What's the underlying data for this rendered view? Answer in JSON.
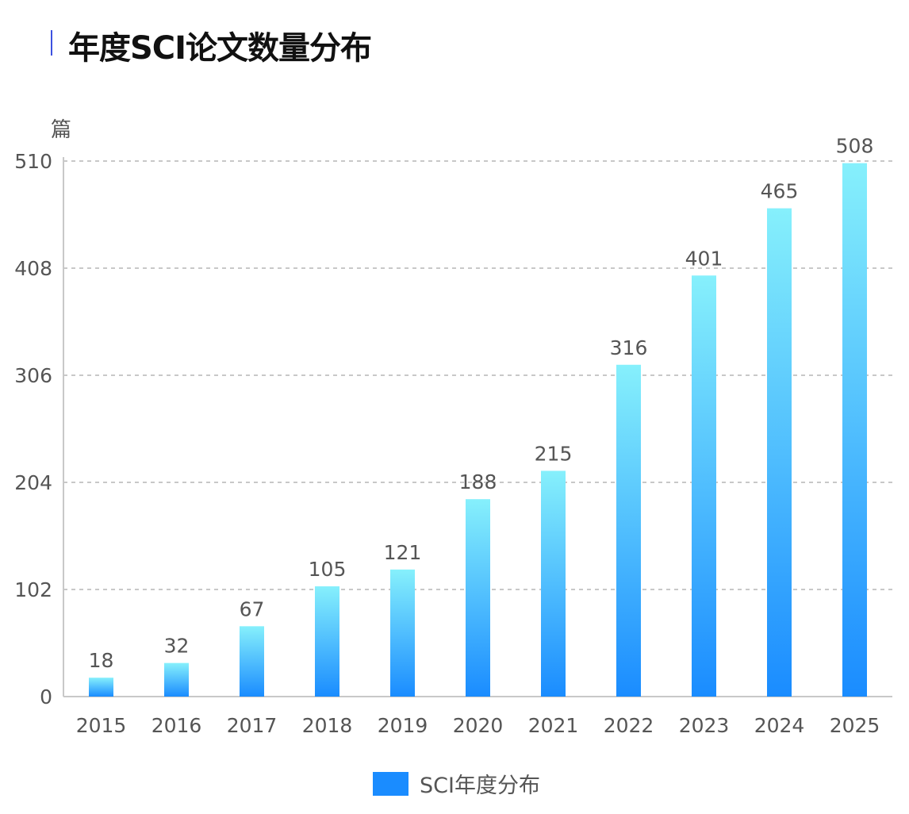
{
  "header": {
    "title": "年度SCI论文数量分布"
  },
  "colors": {
    "accent_bar": "#3d52e0",
    "bar_top": "#86f0fc",
    "bar_bottom": "#1a8cff",
    "grid": "#c8c8c8",
    "axis": "#c8c8c8",
    "text": "#555555"
  },
  "chart_data": {
    "type": "bar",
    "title": "年度SCI论文数量分布",
    "ylabel": "篇",
    "xlabel": "",
    "categories": [
      "2015",
      "2016",
      "2017",
      "2018",
      "2019",
      "2020",
      "2021",
      "2022",
      "2023",
      "2024",
      "2025"
    ],
    "series": [
      {
        "name": "SCI年度分布",
        "values": [
          18,
          32,
          67,
          105,
          121,
          188,
          215,
          316,
          401,
          465,
          508
        ]
      }
    ],
    "ylim": [
      0,
      510
    ],
    "yticks": [
      "0",
      "102",
      "204",
      "306",
      "408",
      "510"
    ],
    "grid": true,
    "legend_position": "bottom-center"
  }
}
